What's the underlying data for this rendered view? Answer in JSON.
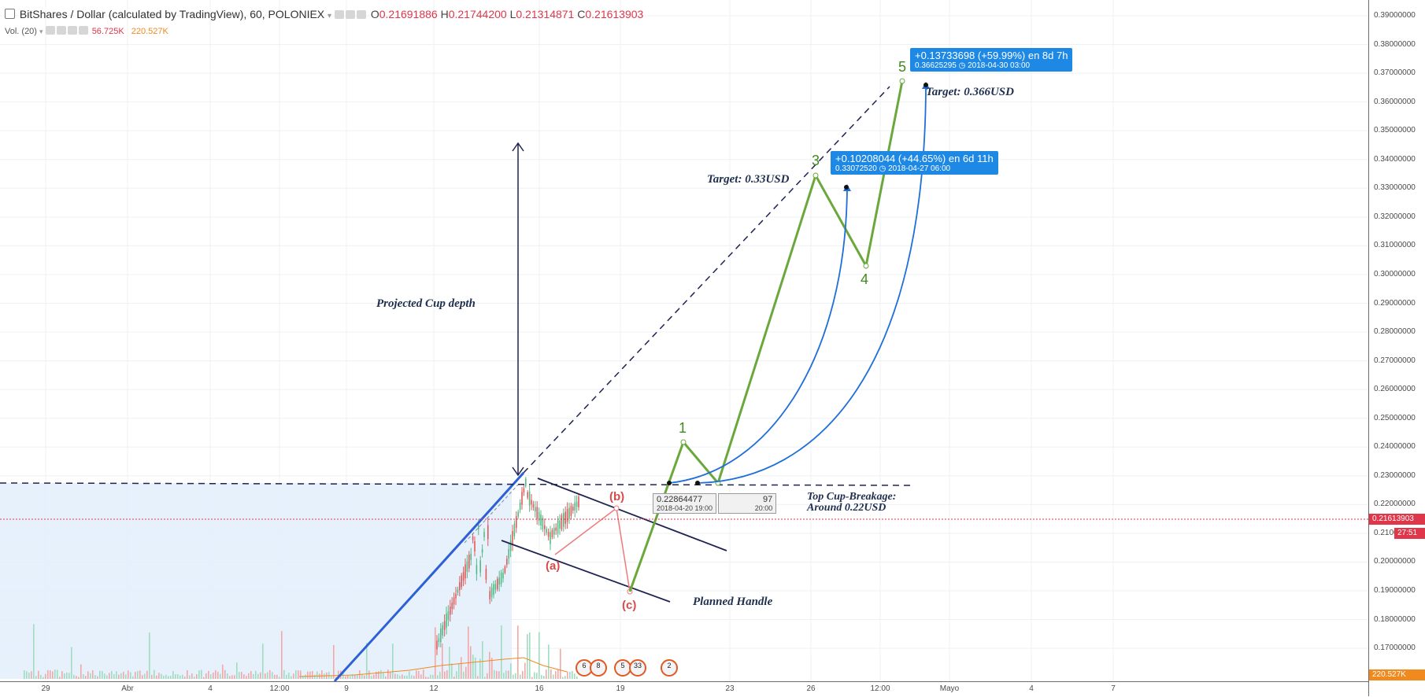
{
  "header": {
    "symbol_title": "BitShares / Dollar (calculated by TradingView), 60, POLONIEX",
    "open_label": "O",
    "open_value": "0.21691886",
    "high_label": "H",
    "high_value": "0.21744200",
    "low_label": "L",
    "low_value": "0.21314871",
    "close_label": "C",
    "close_value": "0.21613903"
  },
  "volume_legend": {
    "label": "Vol. (20)",
    "value1": "56.725K",
    "value2": "220.527K",
    "value1_color": "#e0364a",
    "value2_color": "#f0891e"
  },
  "price_axis": {
    "ticks": [
      "0.39000000",
      "0.38000000",
      "0.37000000",
      "0.36000000",
      "0.35000000",
      "0.34000000",
      "0.33000000",
      "0.32000000",
      "0.31000000",
      "0.30000000",
      "0.29000000",
      "0.28000000",
      "0.27000000",
      "0.26000000",
      "0.25000000",
      "0.24000000",
      "0.23000000",
      "0.22000000",
      "0.21000000",
      "0.20000000",
      "0.19000000",
      "0.18000000",
      "0.17000000"
    ],
    "current_price": "0.21613903",
    "countdown": "27:51",
    "volume_tag": "220.527K"
  },
  "time_axis": {
    "ticks": [
      "29",
      "Abr",
      "4",
      "12:00",
      "9",
      "12",
      "16",
      "19",
      "23",
      "26",
      "12:00",
      "Mayo",
      "4",
      "7"
    ]
  },
  "annotations": {
    "projected_cup_depth": "Projected Cup depth",
    "target_033": "Target: 0.33USD",
    "target_0366": "Target: 0.366USD",
    "top_cup_line1": "Top Cup-Breakage:",
    "top_cup_line2": "Around 0.22USD",
    "planned_handle": "Planned Handle"
  },
  "elliott_waves": {
    "w1": "1",
    "w3": "3",
    "w4": "4",
    "w5": "5"
  },
  "correction_waves": {
    "a": "(a)",
    "b": "(b)",
    "c": "(c)"
  },
  "measure_boxes": {
    "box5": {
      "line1": "+0.13733698 (+59.99%) en 8d 7h",
      "line2": "0.36625295  ◷ 2018-04-30  03:00"
    },
    "box3": {
      "line1": "+0.10208044 (+44.65%) en 6d 11h",
      "line2": "0.33072520  ◷ 2018-04-27  06:00"
    }
  },
  "price_labels": {
    "label_a": {
      "price": "0.22864477",
      "time": "2018-04-20 19:00"
    },
    "label_b_partial": {
      "price": "97",
      "time": "20:00"
    }
  },
  "event_icons": [
    "6",
    "8",
    "5",
    "33",
    "2"
  ],
  "colors": {
    "accent_blue": "#1e88e5",
    "wave_green": "#6aa83c",
    "down_red": "#e05a5a",
    "up_green": "#53b987",
    "navy": "#1f2352"
  }
}
